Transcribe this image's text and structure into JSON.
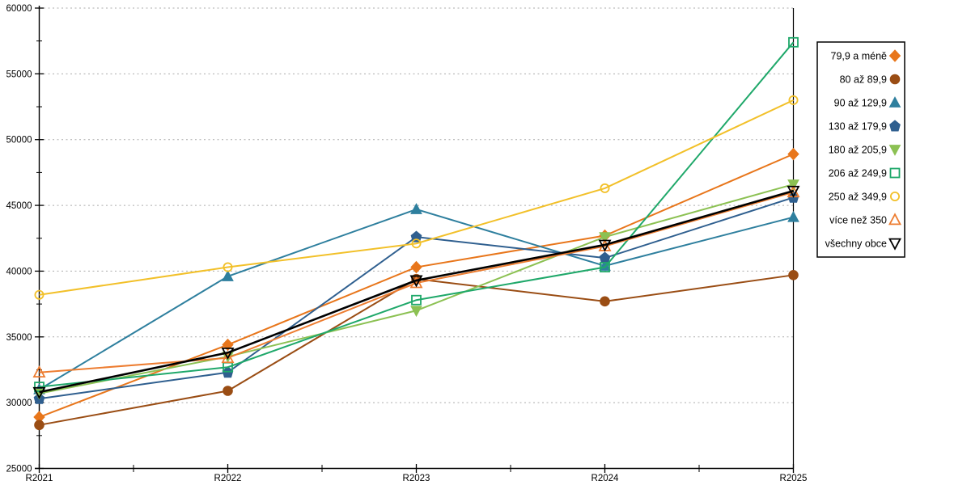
{
  "chart_data": {
    "type": "line",
    "title": "",
    "xlabel": "",
    "ylabel": "",
    "categories": [
      "R2021",
      "R2022",
      "R2023",
      "R2024",
      "R2025"
    ],
    "ylim": [
      25000,
      60000
    ],
    "ytick_step": 5000,
    "yticks": [
      "25000",
      "30000",
      "35000",
      "40000",
      "45000",
      "50000",
      "55000",
      "60000"
    ],
    "grid": "horizontal-dashed",
    "legend_position": "right-box",
    "series": [
      {
        "name": "79,9 a méně",
        "color": "#E8761B",
        "marker": "diamond",
        "filled": true,
        "values": [
          28900,
          34400,
          40300,
          42700,
          48900
        ]
      },
      {
        "name": "80 až 89,9",
        "color": "#9A4D14",
        "marker": "circle",
        "filled": true,
        "values": [
          28300,
          30900,
          39400,
          37700,
          39700
        ]
      },
      {
        "name": "90 až 129,9",
        "color": "#2E7F9E",
        "marker": "triangle-up",
        "filled": true,
        "values": [
          31000,
          39600,
          44700,
          40400,
          44100
        ]
      },
      {
        "name": "130 až 179,9",
        "color": "#2F5F8F",
        "marker": "pentagon",
        "filled": true,
        "values": [
          30300,
          32300,
          42600,
          41000,
          45600
        ]
      },
      {
        "name": "180 až 205,9",
        "color": "#8CC153",
        "marker": "triangle-down",
        "filled": true,
        "values": [
          30700,
          33500,
          37000,
          42600,
          46600
        ]
      },
      {
        "name": "206 až 249,9",
        "color": "#1FA86A",
        "marker": "square",
        "filled": false,
        "values": [
          31200,
          32700,
          37800,
          40300,
          57400
        ]
      },
      {
        "name": "250 až 349,9",
        "color": "#F2C029",
        "marker": "circle",
        "filled": false,
        "values": [
          38200,
          40300,
          42100,
          46300,
          53000
        ]
      },
      {
        "name": "více než 350",
        "color": "#ED7D31",
        "marker": "triangle-up",
        "filled": false,
        "values": [
          32300,
          33400,
          39100,
          41900,
          46000
        ]
      },
      {
        "name": "všechny obce",
        "color": "#000000",
        "marker": "triangle-down",
        "filled": false,
        "values": [
          30800,
          33800,
          39300,
          42000,
          46100
        ]
      }
    ],
    "colors": {
      "gridline": "#ABABAB",
      "axis": "#000000",
      "background": "#FFFFFF",
      "legend_border": "#000000"
    }
  }
}
